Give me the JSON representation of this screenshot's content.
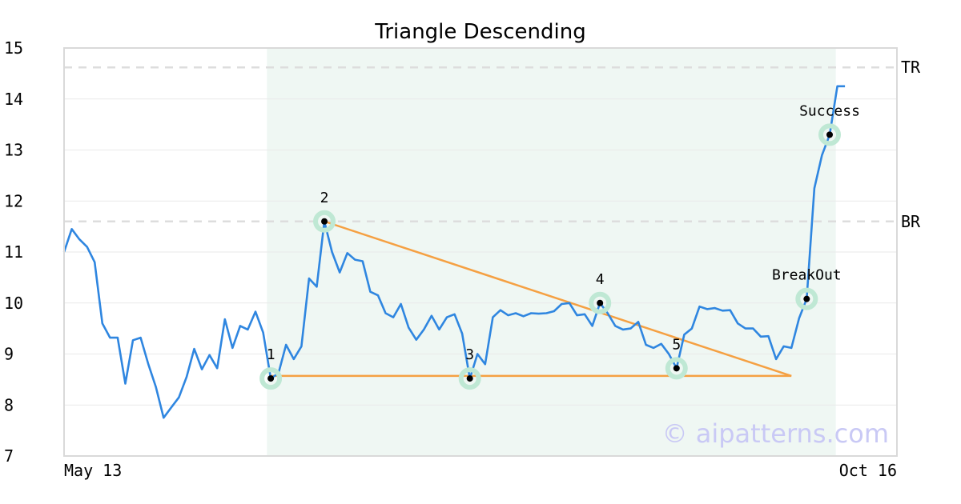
{
  "chart_data": {
    "type": "line",
    "title": "Triangle Descending",
    "ylim": [
      7,
      15
    ],
    "yticks": [
      7,
      8,
      9,
      10,
      11,
      12,
      13,
      14,
      15
    ],
    "x_tick_labels": {
      "start": "May 13",
      "end": "Oct 16"
    },
    "grid": "horizontal",
    "series": [
      {
        "color": "#2f86e0",
        "values": [
          11.0,
          11.45,
          11.25,
          11.1,
          10.8,
          9.6,
          9.32,
          9.32,
          8.42,
          9.27,
          9.32,
          8.8,
          8.35,
          7.75,
          7.95,
          8.15,
          8.55,
          9.1,
          8.7,
          8.98,
          8.72,
          9.68,
          9.12,
          9.55,
          9.48,
          9.83,
          9.42,
          8.52,
          8.62,
          9.18,
          8.9,
          9.15,
          10.48,
          10.32,
          11.6,
          11.0,
          10.6,
          10.98,
          10.85,
          10.82,
          10.22,
          10.15,
          9.8,
          9.72,
          9.98,
          9.52,
          9.28,
          9.48,
          9.75,
          9.48,
          9.72,
          9.78,
          9.4,
          8.52,
          9.0,
          8.8,
          9.72,
          9.86,
          9.76,
          9.8,
          9.74,
          9.8,
          9.79,
          9.8,
          9.84,
          9.98,
          10.0,
          9.76,
          9.78,
          9.55,
          10.0,
          9.8,
          9.55,
          9.48,
          9.5,
          9.63,
          9.18,
          9.12,
          9.2,
          9.0,
          8.72,
          9.38,
          9.5,
          9.93,
          9.88,
          9.9,
          9.85,
          9.86,
          9.6,
          9.5,
          9.5,
          9.34,
          9.35,
          8.9,
          9.15,
          9.12,
          9.7,
          10.08,
          12.25,
          12.9,
          13.3,
          14.25,
          14.25
        ]
      }
    ],
    "reference_lines": [
      {
        "label": "TR",
        "y": 14.62
      },
      {
        "label": "BR",
        "y": 11.6
      }
    ],
    "pattern_points": [
      {
        "label": "1",
        "index": 27,
        "y": 8.52
      },
      {
        "label": "2",
        "index": 34,
        "y": 11.6
      },
      {
        "label": "3",
        "index": 53,
        "y": 8.52
      },
      {
        "label": "4",
        "index": 70,
        "y": 10.0
      },
      {
        "label": "5",
        "index": 80,
        "y": 8.72
      },
      {
        "label": "BreakOut",
        "index": 97,
        "y": 10.08
      },
      {
        "label": "Success",
        "index": 100,
        "y": 13.3
      }
    ],
    "pattern_lines": [
      {
        "from": {
          "index": 27,
          "y": 8.57
        },
        "to": {
          "index": 95,
          "y": 8.57
        }
      },
      {
        "from": {
          "index": 34,
          "y": 11.6
        },
        "to": {
          "index": 95,
          "y": 8.57
        }
      }
    ],
    "highlight_range": {
      "start_index": 26.5,
      "end_index": 100.8
    },
    "colors": {
      "line": "#2f86e0",
      "pattern": "#f5a042",
      "highlight": "#eff7f3",
      "marker_ring": "#bfe8d4",
      "reference": "#dddddd"
    }
  },
  "watermark": "© aipatterns.com"
}
